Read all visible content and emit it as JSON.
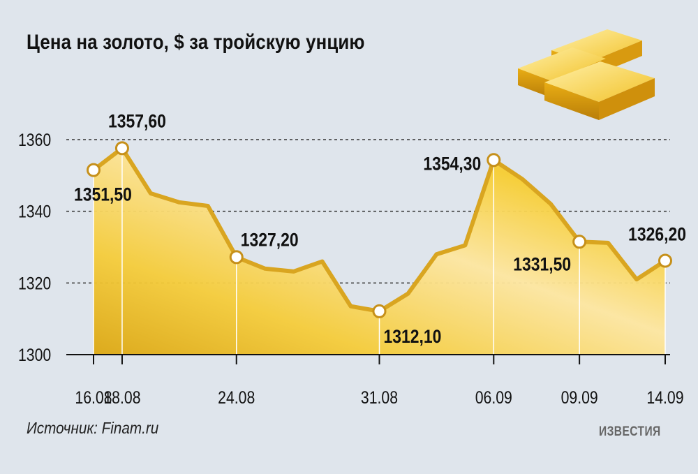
{
  "title": "Цена на золото, $ за тройскую унцию",
  "source": "Источник: Finam.ru",
  "publisher": "ИЗВЕСТИЯ",
  "colors": {
    "background": "#dfe5ec",
    "line": "#d9a520",
    "fill_light": "#fbe9a8",
    "fill_dark": "#e8b818",
    "gold_bar": "#f0c030"
  },
  "icons": [
    "gold-bars-icon"
  ],
  "chart_data": {
    "type": "area",
    "title": "Цена на золото, $ за тройскую унцию",
    "xlabel": "",
    "ylabel": "",
    "ylim": [
      1300,
      1360
    ],
    "yticks": [
      "1300",
      "1320",
      "1340",
      "1360"
    ],
    "grid": "horizontal dashed",
    "points": [
      1351.5,
      1357.6,
      1345.0,
      1342.5,
      1341.5,
      1327.2,
      1324.0,
      1323.2,
      1326.0,
      1313.5,
      1312.1,
      1317.0,
      1328.0,
      1330.5,
      1354.3,
      1349.0,
      1342.0,
      1331.5,
      1331.2,
      1321.0,
      1326.2
    ],
    "date_labels": [
      {
        "index": 0,
        "label": "16.08"
      },
      {
        "index": 1,
        "label": "18.08"
      },
      {
        "index": 5,
        "label": "24.08"
      },
      {
        "index": 10,
        "label": "31.08"
      },
      {
        "index": 14,
        "label": "06.09"
      },
      {
        "index": 17,
        "label": "09.09"
      },
      {
        "index": 20,
        "label": "14.09"
      }
    ],
    "annotations": [
      {
        "index": 0,
        "label": "1351,50"
      },
      {
        "index": 1,
        "label": "1357,60"
      },
      {
        "index": 5,
        "label": "1327,20"
      },
      {
        "index": 10,
        "label": "1312,10"
      },
      {
        "index": 14,
        "label": "1354,30"
      },
      {
        "index": 17,
        "label": "1331,50"
      },
      {
        "index": 20,
        "label": "1326,20"
      }
    ]
  }
}
